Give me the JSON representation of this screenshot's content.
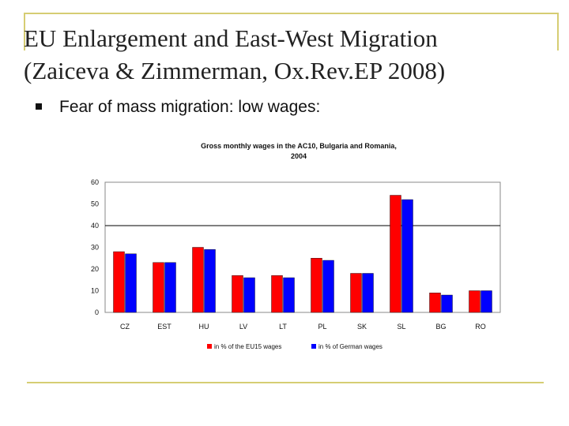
{
  "slide": {
    "title_line1": "EU Enlargement and East-West Migration",
    "title_line2": "(Zaiceva & Zimmerman, Ox.Rev.EP 2008)",
    "bullet": "Fear of mass migration: low wages:"
  },
  "colors": {
    "accent": "#d6cd73",
    "series_eu15": "#ff0000",
    "series_german": "#0000ff"
  },
  "chart_data": {
    "type": "bar",
    "title_line1": "Gross monthly wages in the AC10, Bulgaria and Romania,",
    "title_line2": "2004",
    "categories": [
      "CZ",
      "EST",
      "HU",
      "LV",
      "LT",
      "PL",
      "SK",
      "SL",
      "BG",
      "RO"
    ],
    "series": [
      {
        "name": "in % of the EU15 wages",
        "values": [
          28,
          23,
          30,
          17,
          17,
          25,
          18,
          54,
          9,
          10
        ]
      },
      {
        "name": "in % of German wages",
        "values": [
          27,
          23,
          29,
          16,
          16,
          24,
          18,
          52,
          8,
          10
        ]
      }
    ],
    "yticks": [
      0,
      10,
      20,
      30,
      40,
      50,
      60
    ],
    "ylim": [
      0,
      60
    ],
    "reference_line": 40,
    "xlabel": "",
    "ylabel": "",
    "legend_position": "bottom"
  }
}
